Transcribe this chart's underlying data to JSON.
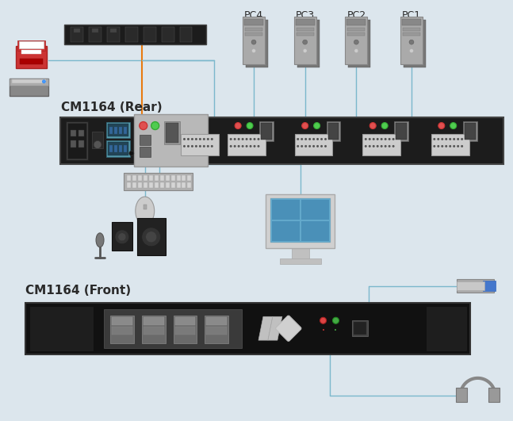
{
  "bg_color": "#dce6ed",
  "title_rear": "CM1164 (Rear)",
  "title_front": "CM1164 (Front)",
  "pc_labels": [
    "PC4",
    "PC3",
    "PC2",
    "PC1"
  ],
  "line_color_blue": "#7bb8cc",
  "line_color_orange": "#e87a10",
  "text_color": "#2a2a2a"
}
